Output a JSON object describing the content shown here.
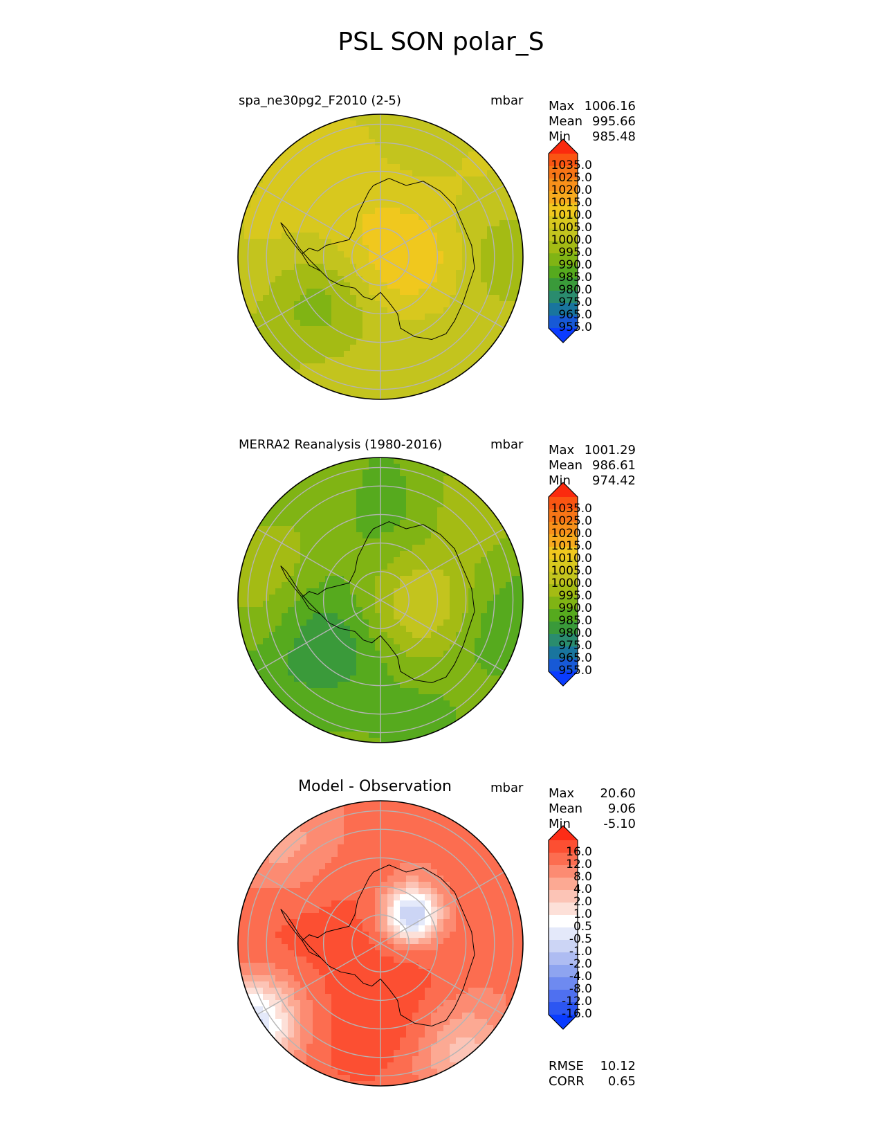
{
  "figure_title": "PSL SON polar_S",
  "colors": {
    "abs_levels": [
      "#0a3cff",
      "#1759d6",
      "#19759e",
      "#2a8c6e",
      "#3a9a3a",
      "#56aa1e",
      "#80b414",
      "#a4bb14",
      "#c3c41e",
      "#d8c81e",
      "#f0c81e",
      "#f7aa1e",
      "#f8901a",
      "#f77516",
      "#fa5512",
      "#fb2a0e"
    ],
    "diff_levels": [
      "#0a3cff",
      "#2c56f2",
      "#4f70f0",
      "#6e8af0",
      "#8ea4f0",
      "#aebcf2",
      "#ccd5f5",
      "#e4e9fa",
      "#ffffff",
      "#fde0d8",
      "#fcc4b6",
      "#fca993",
      "#fc8b72",
      "#fc6d50",
      "#fc4f32",
      "#fd2c16"
    ],
    "grid": "#b4b4b4",
    "coast": "#000000"
  },
  "panels": [
    {
      "id": "test",
      "title": "spa_ne30pg2_F2010 (2-5)",
      "units": "mbar",
      "stats": [
        {
          "label": "Max",
          "value": "1006.16"
        },
        {
          "label": "Mean",
          "value": "995.66"
        },
        {
          "label": "Min",
          "value": "985.48"
        }
      ],
      "colorbar_ticks": [
        "1035.0",
        "1025.0",
        "1020.0",
        "1015.0",
        "1010.0",
        "1005.0",
        "1000.0",
        "995.0",
        "990.0",
        "985.0",
        "980.0",
        "975.0",
        "965.0",
        "955.0"
      ]
    },
    {
      "id": "ref",
      "title": "MERRA2 Reanalysis (1980-2016)",
      "units": "mbar",
      "stats": [
        {
          "label": "Max",
          "value": "1001.29"
        },
        {
          "label": "Mean",
          "value": "986.61"
        },
        {
          "label": "Min",
          "value": "974.42"
        }
      ],
      "colorbar_ticks": [
        "1035.0",
        "1025.0",
        "1020.0",
        "1015.0",
        "1010.0",
        "1005.0",
        "1000.0",
        "995.0",
        "990.0",
        "985.0",
        "980.0",
        "975.0",
        "965.0",
        "955.0"
      ]
    },
    {
      "id": "diff",
      "title": "Model - Observation",
      "units": "mbar",
      "stats": [
        {
          "label": "Max",
          "value": "20.60"
        },
        {
          "label": "Mean",
          "value": "9.06"
        },
        {
          "label": "Min",
          "value": "-5.10"
        }
      ],
      "colorbar_ticks": [
        "16.0",
        "12.0",
        "8.0",
        "4.0",
        "2.0",
        "1.0",
        "0.5",
        "-0.5",
        "-1.0",
        "-2.0",
        "-4.0",
        "-8.0",
        "-12.0",
        "-16.0"
      ],
      "extra_stats": [
        {
          "label": "RMSE",
          "value": "10.12"
        },
        {
          "label": "CORR",
          "value": "0.65"
        }
      ]
    }
  ],
  "chart_data": [
    {
      "type": "heatmap",
      "title": "spa_ne30pg2_F2010 (2-5)",
      "projection": "south polar stereographic",
      "units": "mbar",
      "max": 1006.16,
      "mean": 995.66,
      "min": 985.48,
      "color_levels": [
        955,
        965,
        975,
        980,
        985,
        990,
        995,
        1000,
        1005,
        1010,
        1015,
        1020,
        1025,
        1035
      ],
      "extend": "both"
    },
    {
      "type": "heatmap",
      "title": "MERRA2 Reanalysis (1980-2016)",
      "projection": "south polar stereographic",
      "units": "mbar",
      "max": 1001.29,
      "mean": 986.61,
      "min": 974.42,
      "color_levels": [
        955,
        965,
        975,
        980,
        985,
        990,
        995,
        1000,
        1005,
        1010,
        1015,
        1020,
        1025,
        1035
      ],
      "extend": "both"
    },
    {
      "type": "heatmap",
      "title": "Model - Observation",
      "projection": "south polar stereographic",
      "units": "mbar",
      "max": 20.6,
      "mean": 9.06,
      "min": -5.1,
      "rmse": 10.12,
      "corr": 0.65,
      "color_levels": [
        -16,
        -12,
        -8,
        -4,
        -2,
        -1,
        -0.5,
        0.5,
        1,
        2,
        4,
        8,
        12,
        16
      ],
      "extend": "both"
    }
  ]
}
